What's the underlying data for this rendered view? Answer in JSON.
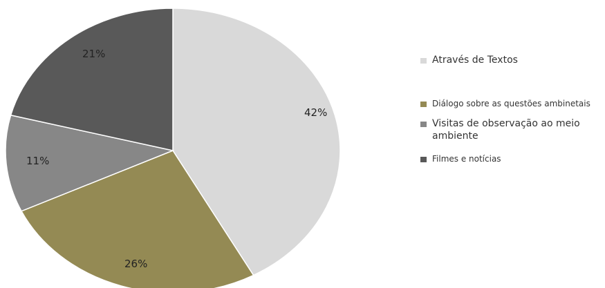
{
  "chart_data": {
    "type": "pie",
    "categories": [
      "Através de Textos",
      "Diálogo sobre as questões ambinetais",
      "Visitas de observação ao meio ambiente",
      "Filmes e notícias"
    ],
    "values": [
      42,
      26,
      11,
      21
    ],
    "value_labels": [
      "42%",
      "26%",
      "11%",
      "21%"
    ],
    "colors": [
      "#d9d9d9",
      "#948a54",
      "#878787",
      "#595959"
    ],
    "start_angle_deg": 0,
    "direction": "clockwise",
    "legend_position": "right"
  }
}
